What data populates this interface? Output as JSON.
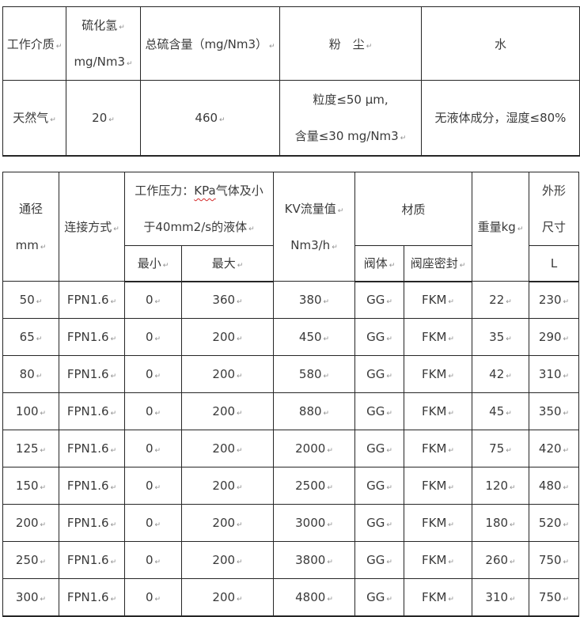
{
  "marks": {
    "glyph": "↵"
  },
  "colors": {
    "background": "#ffffff",
    "border": "#262626",
    "text": "#3a3a3a",
    "paragraph_mark": "#8f8f8f",
    "spellcheck_underline": "#d42a2a"
  },
  "media_table": {
    "header": {
      "medium": "工作介质",
      "h2s_line1": "硫化氢",
      "h2s_line2": "mg/Nm3",
      "total_sulfur": "总硫含量（mg/Nm3）",
      "dust": "粉　尘",
      "water": "水"
    },
    "row": {
      "medium": "天然气",
      "h2s": "20",
      "total_sulfur": "460",
      "dust_line1": "粒度≤50 μm,",
      "dust_line2": "含量≤30 mg/Nm3",
      "water": "无液体成分，湿度≤80%"
    }
  },
  "spec_table": {
    "header": {
      "dn_line1": "通径",
      "dn_line2": "mm",
      "connection": "连接方式",
      "pressure_prefix": "工作压力：",
      "pressure_kpa": "KPa",
      "pressure_suffix": "气体及小",
      "pressure_line2": "于40mm2/s的液体",
      "min": "最小",
      "max": "最大",
      "kv_line1": "KV流量值",
      "kv_line2": "Nm3/h",
      "material": "材质",
      "valve_body": "阀体",
      "seat_seal": "阀座密封",
      "weight": "重量kg",
      "dim_line1": "外形",
      "dim_line2": "尺寸",
      "dim_sub": "L"
    },
    "rows": [
      [
        "50",
        "FPN1.6",
        "0",
        "360",
        "380",
        "GG",
        "FKM",
        "22",
        "230"
      ],
      [
        "65",
        "FPN1.6",
        "0",
        "200",
        "450",
        "GG",
        "FKM",
        "35",
        "290"
      ],
      [
        "80",
        "FPN1.6",
        "0",
        "200",
        "580",
        "GG",
        "FKM",
        "42",
        "310"
      ],
      [
        "100",
        "FPN1.6",
        "0",
        "200",
        "880",
        "GG",
        "FKM",
        "45",
        "350"
      ],
      [
        "125",
        "FPN1.6",
        "0",
        "200",
        "2000",
        "GG",
        "FKM",
        "75",
        "420"
      ],
      [
        "150",
        "FPN1.6",
        "0",
        "200",
        "2500",
        "GG",
        "FKM",
        "120",
        "480"
      ],
      [
        "200",
        "FPN1.6",
        "0",
        "200",
        "3000",
        "GG",
        "FKM",
        "180",
        "520"
      ],
      [
        "250",
        "FPN1.6",
        "0",
        "200",
        "3800",
        "GG",
        "FKM",
        "260",
        "750"
      ],
      [
        "300",
        "FPN1.6",
        "0",
        "200",
        "4800",
        "GG",
        "FKM",
        "310",
        "750"
      ]
    ]
  }
}
